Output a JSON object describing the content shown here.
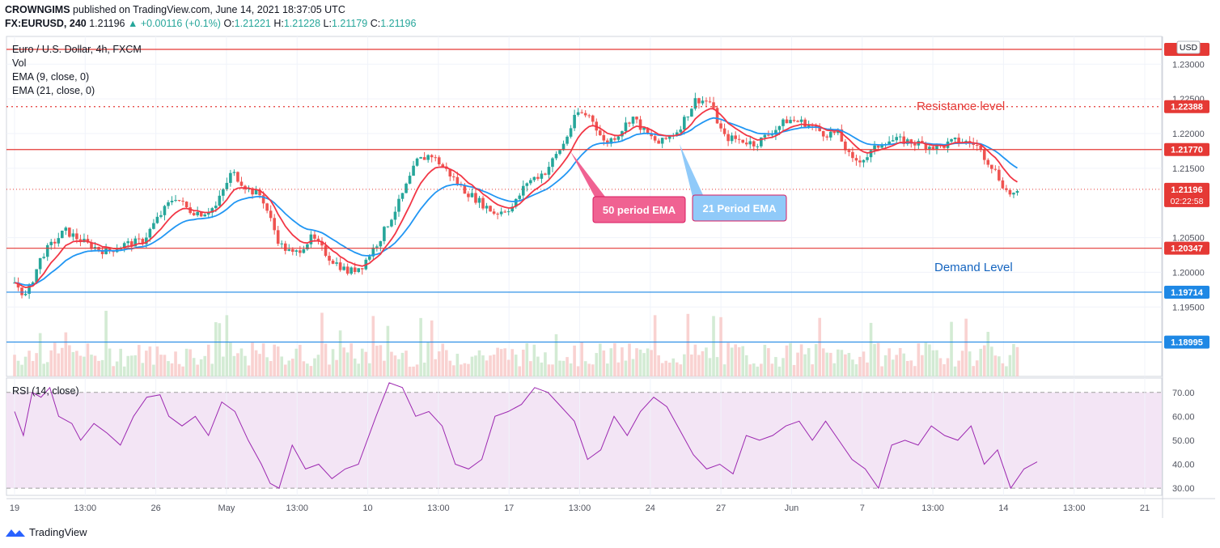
{
  "header": {
    "user": "CROWNGIMS",
    "published_text": "published on TradingView.com, June 14, 2021 18:37:05 UTC",
    "symbol": "FX:EURUSD, 240",
    "last": "1.21196",
    "change": "+0.00116 (+0.1%)",
    "o_label": "O:",
    "o": "1.21221",
    "h_label": "H:",
    "h": "1.21228",
    "l_label": "L:",
    "l": "1.21179",
    "c_label": "C:",
    "c": "1.21196"
  },
  "legend": [
    "Euro / U.S. Dollar, 4h, FXCM",
    "Vol",
    "EMA (9, close, 0)",
    "EMA (21, close, 0)"
  ],
  "rsi_label": "RSI (14, close)",
  "currency_badge": "USD",
  "annotations": {
    "resistance": "Resistance level",
    "demand": "Demand Level",
    "ema50": "50 period EMA",
    "ema21": "21 Period EMA"
  },
  "countdown": "02:22:58",
  "footer": {
    "brand": "TradingView"
  },
  "colors": {
    "up": "#26a69a",
    "down": "#ef5350",
    "ema9": "#f23645",
    "ema21": "#2196f3",
    "rsi": "#9c27b0",
    "rsi_band": "#f3e5f5",
    "res_line": "#e53935",
    "sup_line": "#1e88e5",
    "ann_pink": "#f06292",
    "ann_blue": "#90caf9"
  },
  "chart_data": [
    {
      "type": "candlestick",
      "title": "Euro / U.S. Dollar, 4h, FXCM",
      "y_ticks": [
        "1.23000",
        "1.22500",
        "1.22000",
        "1.21500",
        "1.20500",
        "1.20000",
        "1.19500"
      ],
      "x_ticks": [
        "19",
        "13:00",
        "26",
        "May",
        "13:00",
        "10",
        "13:00",
        "17",
        "13:00",
        "24",
        "27",
        "Jun",
        "7",
        "13:00",
        "14",
        "13:00",
        "21"
      ],
      "ylim": [
        1.185,
        1.234
      ],
      "horizontal_levels": [
        {
          "label": "1.22388",
          "value": 1.22388,
          "color": "#e53935",
          "style": "dotted"
        },
        {
          "label": "1.21770",
          "value": 1.2177,
          "color": "#e53935",
          "style": "solid"
        },
        {
          "label": "1.20347",
          "value": 1.20347,
          "color": "#e53935",
          "style": "solid"
        },
        {
          "label": "1.19714",
          "value": 1.19714,
          "color": "#1e88e5",
          "style": "solid"
        },
        {
          "label": "1.18995",
          "value": 1.18995,
          "color": "#1e88e5",
          "style": "solid"
        }
      ],
      "last_price": {
        "label": "1.21196",
        "value": 1.21196
      },
      "close_path": [
        [
          0,
          1.1985
        ],
        [
          5,
          1.1965
        ],
        [
          12,
          1.2025
        ],
        [
          22,
          1.206
        ],
        [
          32,
          1.204
        ],
        [
          40,
          1.203
        ],
        [
          48,
          1.204
        ],
        [
          56,
          1.2045
        ],
        [
          62,
          1.2075
        ],
        [
          70,
          1.211
        ],
        [
          76,
          1.209
        ],
        [
          82,
          1.2085
        ],
        [
          88,
          1.2095
        ],
        [
          95,
          1.2145
        ],
        [
          102,
          1.212
        ],
        [
          108,
          1.211
        ],
        [
          116,
          1.204
        ],
        [
          122,
          1.2025
        ],
        [
          130,
          1.205
        ],
        [
          138,
          1.202
        ],
        [
          146,
          1.2
        ],
        [
          152,
          1.201
        ],
        [
          160,
          1.205
        ],
        [
          168,
          1.21
        ],
        [
          176,
          1.216
        ],
        [
          182,
          1.217
        ],
        [
          188,
          1.215
        ],
        [
          196,
          1.212
        ],
        [
          202,
          1.2105
        ],
        [
          210,
          1.2085
        ],
        [
          218,
          1.2095
        ],
        [
          224,
          1.213
        ],
        [
          232,
          1.2145
        ],
        [
          240,
          1.2185
        ],
        [
          246,
          1.223
        ],
        [
          252,
          1.2225
        ],
        [
          258,
          1.2185
        ],
        [
          264,
          1.22
        ],
        [
          270,
          1.2225
        ],
        [
          276,
          1.22
        ],
        [
          282,
          1.2185
        ],
        [
          290,
          1.2205
        ],
        [
          298,
          1.225
        ],
        [
          304,
          1.2245
        ],
        [
          310,
          1.2195
        ],
        [
          318,
          1.219
        ],
        [
          324,
          1.2185
        ],
        [
          330,
          1.22
        ],
        [
          338,
          1.222
        ],
        [
          346,
          1.2215
        ],
        [
          354,
          1.22
        ],
        [
          360,
          1.22
        ],
        [
          366,
          1.216
        ],
        [
          372,
          1.2165
        ],
        [
          380,
          1.219
        ],
        [
          388,
          1.219
        ],
        [
          396,
          1.2185
        ],
        [
          404,
          1.218
        ],
        [
          412,
          1.219
        ],
        [
          420,
          1.2185
        ],
        [
          428,
          1.215
        ],
        [
          434,
          1.2115
        ],
        [
          440,
          1.211
        ]
      ],
      "volume_note": "volume histogram bars"
    },
    {
      "type": "line",
      "title": "RSI (14, close)",
      "y_ticks": [
        "70.00",
        "60.00",
        "50.00",
        "40.00",
        "30.00"
      ],
      "ylim": [
        27,
        76
      ],
      "series": [
        {
          "values": [
            [
              0,
              62
            ],
            [
              4,
              52
            ],
            [
              8,
              70
            ],
            [
              12,
              68
            ],
            [
              16,
              72
            ],
            [
              20,
              60
            ],
            [
              26,
              57
            ],
            [
              30,
              50
            ],
            [
              36,
              57
            ],
            [
              42,
              53
            ],
            [
              48,
              48
            ],
            [
              54,
              60
            ],
            [
              60,
              68
            ],
            [
              66,
              69
            ],
            [
              70,
              60
            ],
            [
              76,
              56
            ],
            [
              82,
              60
            ],
            [
              88,
              52
            ],
            [
              94,
              66
            ],
            [
              100,
              62
            ],
            [
              106,
              50
            ],
            [
              112,
              40
            ],
            [
              116,
              32
            ],
            [
              120,
              30
            ],
            [
              126,
              48
            ],
            [
              132,
              38
            ],
            [
              138,
              40
            ],
            [
              144,
              34
            ],
            [
              150,
              38
            ],
            [
              156,
              40
            ],
            [
              164,
              60
            ],
            [
              170,
              74
            ],
            [
              176,
              72
            ],
            [
              182,
              60
            ],
            [
              188,
              62
            ],
            [
              194,
              56
            ],
            [
              200,
              40
            ],
            [
              206,
              38
            ],
            [
              212,
              42
            ],
            [
              218,
              60
            ],
            [
              224,
              62
            ],
            [
              230,
              65
            ],
            [
              236,
              72
            ],
            [
              242,
              70
            ],
            [
              248,
              64
            ],
            [
              254,
              58
            ],
            [
              260,
              42
            ],
            [
              266,
              46
            ],
            [
              272,
              60
            ],
            [
              278,
              52
            ],
            [
              284,
              62
            ],
            [
              290,
              68
            ],
            [
              296,
              64
            ],
            [
              302,
              54
            ],
            [
              308,
              44
            ],
            [
              314,
              38
            ],
            [
              320,
              40
            ],
            [
              326,
              36
            ],
            [
              332,
              52
            ],
            [
              338,
              50
            ],
            [
              344,
              52
            ],
            [
              350,
              56
            ],
            [
              356,
              58
            ],
            [
              362,
              50
            ],
            [
              368,
              58
            ],
            [
              374,
              50
            ],
            [
              380,
              42
            ],
            [
              386,
              38
            ],
            [
              392,
              30
            ],
            [
              398,
              48
            ],
            [
              404,
              50
            ],
            [
              410,
              48
            ],
            [
              416,
              56
            ],
            [
              422,
              52
            ],
            [
              428,
              50
            ],
            [
              434,
              56
            ],
            [
              440,
              40
            ],
            [
              446,
              46
            ],
            [
              452,
              30
            ],
            [
              458,
              38
            ],
            [
              464,
              41
            ]
          ]
        }
      ]
    }
  ]
}
